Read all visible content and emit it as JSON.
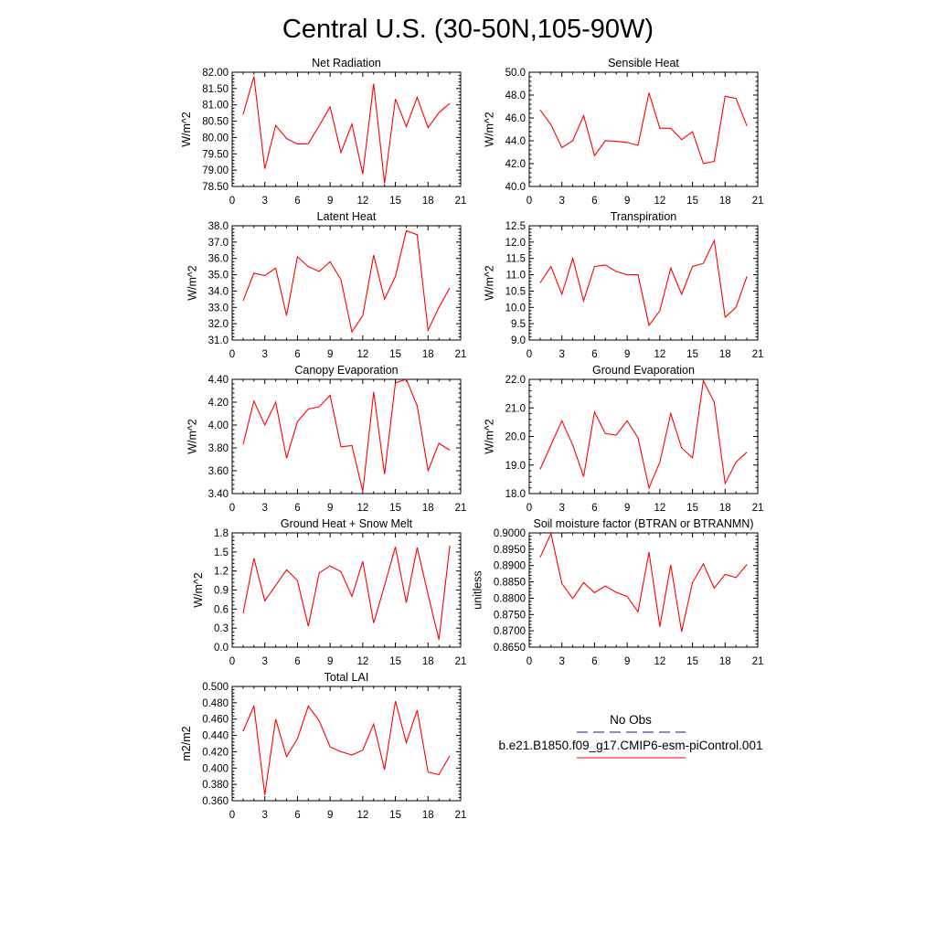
{
  "figure": {
    "title": "Central U.S. (30-50N,105-90W)"
  },
  "legend": {
    "entries": [
      {
        "label": "No Obs",
        "color": "#1a1a7a",
        "dash": "dashed"
      },
      {
        "label": "b.e21.B1850.f09_g17.CMIP6-esm-piControl.001",
        "color": "#ff0000",
        "dash": "solid"
      }
    ]
  },
  "chart_data": [
    {
      "type": "line",
      "title": "Net Radiation",
      "ylabel": "W/m^2",
      "xlim": [
        0,
        21
      ],
      "ylim": [
        78.5,
        82.0
      ],
      "yticks": [
        "78.50",
        "79.00",
        "79.50",
        "80.00",
        "80.50",
        "81.00",
        "81.50",
        "82.00"
      ],
      "xticks": [
        "0",
        "3",
        "6",
        "9",
        "12",
        "15",
        "18",
        "21"
      ],
      "series": [
        {
          "color": "#ff0000",
          "x": [
            1,
            2,
            3,
            4,
            5,
            6,
            7,
            8,
            9,
            10,
            11,
            12,
            13,
            14,
            15,
            16,
            17,
            18,
            19,
            20
          ],
          "values": [
            80.7,
            81.87,
            79.04,
            80.37,
            79.97,
            79.8,
            79.81,
            80.36,
            80.94,
            79.54,
            80.41,
            78.88,
            81.65,
            78.6,
            81.18,
            80.33,
            81.23,
            80.3,
            80.76,
            81.05
          ]
        }
      ]
    },
    {
      "type": "line",
      "title": "Sensible Heat",
      "ylabel": "W/m^2",
      "xlim": [
        0,
        21
      ],
      "ylim": [
        40.0,
        50.0
      ],
      "yticks": [
        "40.0",
        "42.0",
        "44.0",
        "46.0",
        "48.0",
        "50.0"
      ],
      "xticks": [
        "0",
        "3",
        "6",
        "9",
        "12",
        "15",
        "18",
        "21"
      ],
      "series": [
        {
          "color": "#ff0000",
          "x": [
            1,
            2,
            3,
            4,
            5,
            6,
            7,
            8,
            9,
            10,
            11,
            12,
            13,
            14,
            15,
            16,
            17,
            18,
            19,
            20
          ],
          "values": [
            46.7,
            45.4,
            43.4,
            44.0,
            46.2,
            42.7,
            44.0,
            43.95,
            43.85,
            43.6,
            48.2,
            45.1,
            45.1,
            44.1,
            44.8,
            42.0,
            42.2,
            47.9,
            47.7,
            45.3
          ]
        }
      ]
    },
    {
      "type": "line",
      "title": "Latent Heat",
      "ylabel": "W/m^2",
      "xlim": [
        0,
        21
      ],
      "ylim": [
        31.0,
        38.0
      ],
      "yticks": [
        "31.0",
        "32.0",
        "33.0",
        "34.0",
        "35.0",
        "36.0",
        "37.0",
        "38.0"
      ],
      "xticks": [
        "0",
        "3",
        "6",
        "9",
        "12",
        "15",
        "18",
        "21"
      ],
      "series": [
        {
          "color": "#ff0000",
          "x": [
            1,
            2,
            3,
            4,
            5,
            6,
            7,
            8,
            9,
            10,
            11,
            12,
            13,
            14,
            15,
            16,
            17,
            18,
            19,
            20
          ],
          "values": [
            33.4,
            35.1,
            34.95,
            35.4,
            32.5,
            36.1,
            35.5,
            35.2,
            35.8,
            34.7,
            31.5,
            32.5,
            36.2,
            33.5,
            34.9,
            37.7,
            37.45,
            31.6,
            33.0,
            34.2
          ]
        }
      ]
    },
    {
      "type": "line",
      "title": "Transpiration",
      "ylabel": "W/m^2",
      "xlim": [
        0,
        21
      ],
      "ylim": [
        9.0,
        12.5
      ],
      "yticks": [
        "9.0",
        "9.5",
        "10.0",
        "10.5",
        "11.0",
        "11.5",
        "12.0",
        "12.5"
      ],
      "xticks": [
        "0",
        "3",
        "6",
        "9",
        "12",
        "15",
        "18",
        "21"
      ],
      "series": [
        {
          "color": "#ff0000",
          "x": [
            1,
            2,
            3,
            4,
            5,
            6,
            7,
            8,
            9,
            10,
            11,
            12,
            13,
            14,
            15,
            16,
            17,
            18,
            19,
            20
          ],
          "values": [
            10.75,
            11.25,
            10.4,
            11.5,
            10.2,
            11.25,
            11.3,
            11.1,
            11.0,
            11.0,
            9.45,
            9.9,
            11.2,
            10.4,
            11.25,
            11.35,
            12.05,
            9.7,
            10.0,
            10.95
          ]
        }
      ]
    },
    {
      "type": "line",
      "title": "Canopy Evaporation",
      "ylabel": "W/m^2",
      "xlim": [
        0,
        21
      ],
      "ylim": [
        3.4,
        4.4
      ],
      "yticks": [
        "3.40",
        "3.60",
        "3.80",
        "4.00",
        "4.20",
        "4.40"
      ],
      "xticks": [
        "0",
        "3",
        "6",
        "9",
        "12",
        "15",
        "18",
        "21"
      ],
      "series": [
        {
          "color": "#ff0000",
          "x": [
            1,
            2,
            3,
            4,
            5,
            6,
            7,
            8,
            9,
            10,
            11,
            12,
            13,
            14,
            15,
            16,
            17,
            18,
            19,
            20
          ],
          "values": [
            3.83,
            4.21,
            4.0,
            4.2,
            3.71,
            4.03,
            4.14,
            4.16,
            4.26,
            3.81,
            3.82,
            3.42,
            4.29,
            3.57,
            4.37,
            4.4,
            4.17,
            3.6,
            3.84,
            3.78
          ]
        }
      ]
    },
    {
      "type": "line",
      "title": "Ground Evaporation",
      "ylabel": "W/m^2",
      "xlim": [
        0,
        21
      ],
      "ylim": [
        18.0,
        22.0
      ],
      "yticks": [
        "18.0",
        "19.0",
        "20.0",
        "21.0",
        "22.0"
      ],
      "xticks": [
        "0",
        "3",
        "6",
        "9",
        "12",
        "15",
        "18",
        "21"
      ],
      "series": [
        {
          "color": "#ff0000",
          "x": [
            1,
            2,
            3,
            4,
            5,
            6,
            7,
            8,
            9,
            10,
            11,
            12,
            13,
            14,
            15,
            16,
            17,
            18,
            19,
            20
          ],
          "values": [
            18.85,
            19.7,
            20.55,
            19.7,
            18.6,
            20.85,
            20.1,
            20.05,
            20.55,
            19.95,
            18.2,
            19.1,
            20.8,
            19.6,
            19.25,
            21.95,
            21.2,
            18.35,
            19.1,
            19.45
          ]
        }
      ]
    },
    {
      "type": "line",
      "title": "Ground Heat + Snow Melt",
      "ylabel": "W/m^2",
      "xlim": [
        0,
        21
      ],
      "ylim": [
        0.0,
        1.8
      ],
      "yticks": [
        "0.0",
        "0.3",
        "0.6",
        "0.9",
        "1.2",
        "1.5",
        "1.8"
      ],
      "xticks": [
        "0",
        "3",
        "6",
        "9",
        "12",
        "15",
        "18",
        "21"
      ],
      "series": [
        {
          "color": "#ff0000",
          "x": [
            1,
            2,
            3,
            4,
            5,
            6,
            7,
            8,
            9,
            10,
            11,
            12,
            13,
            14,
            15,
            16,
            17,
            18,
            19,
            20
          ],
          "values": [
            0.53,
            1.4,
            0.73,
            0.97,
            1.22,
            1.05,
            0.33,
            1.17,
            1.28,
            1.19,
            0.8,
            1.35,
            0.38,
            0.97,
            1.58,
            0.7,
            1.57,
            0.83,
            0.12,
            1.6
          ]
        }
      ]
    },
    {
      "type": "line",
      "title": "Soil moisture factor (BTRAN or BTRANMN)",
      "ylabel": "unitless",
      "xlim": [
        0,
        21
      ],
      "ylim": [
        0.865,
        0.9
      ],
      "yticks": [
        "0.8650",
        "0.8700",
        "0.8750",
        "0.8800",
        "0.8850",
        "0.8900",
        "0.8950",
        "0.9000"
      ],
      "xticks": [
        "0",
        "3",
        "6",
        "9",
        "12",
        "15",
        "18",
        "21"
      ],
      "series": [
        {
          "color": "#ff0000",
          "x": [
            1,
            2,
            3,
            4,
            5,
            6,
            7,
            8,
            9,
            10,
            11,
            12,
            13,
            14,
            15,
            16,
            17,
            18,
            19,
            20
          ],
          "values": [
            0.8925,
            0.8998,
            0.8845,
            0.8799,
            0.8848,
            0.8817,
            0.8837,
            0.8818,
            0.8805,
            0.8758,
            0.8941,
            0.8713,
            0.8902,
            0.8697,
            0.8848,
            0.8905,
            0.8831,
            0.8873,
            0.8863,
            0.8903
          ]
        }
      ]
    },
    {
      "type": "line",
      "title": "Total LAI",
      "ylabel": "m2/m2",
      "xlim": [
        0,
        21
      ],
      "ylim": [
        0.36,
        0.5
      ],
      "yticks": [
        "0.360",
        "0.380",
        "0.400",
        "0.420",
        "0.440",
        "0.460",
        "0.480",
        "0.500"
      ],
      "xticks": [
        "0",
        "3",
        "6",
        "9",
        "12",
        "15",
        "18",
        "21"
      ],
      "series": [
        {
          "color": "#ff0000",
          "x": [
            1,
            2,
            3,
            4,
            5,
            6,
            7,
            8,
            9,
            10,
            11,
            12,
            13,
            14,
            15,
            16,
            17,
            18,
            19,
            20
          ],
          "values": [
            0.445,
            0.476,
            0.367,
            0.46,
            0.414,
            0.436,
            0.476,
            0.458,
            0.426,
            0.42,
            0.416,
            0.422,
            0.454,
            0.398,
            0.482,
            0.431,
            0.471,
            0.395,
            0.392,
            0.415
          ]
        }
      ]
    }
  ]
}
